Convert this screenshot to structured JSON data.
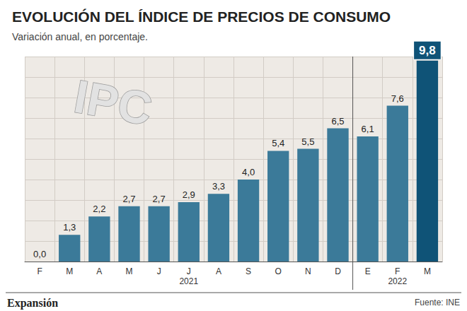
{
  "chart_data": {
    "type": "bar",
    "title": "EVOLUCIÓN DEL ÍNDICE DE PRECIOS DE CONSUMO",
    "subtitle": "Variación anual, en porcentaje.",
    "categories": [
      "F",
      "M",
      "A",
      "M",
      "J",
      "J",
      "A",
      "S",
      "O",
      "N",
      "D",
      "E",
      "F",
      "M"
    ],
    "x_groups": [
      {
        "label": "2021",
        "count": 11
      },
      {
        "label": "2022",
        "count": 3
      }
    ],
    "values": [
      0.0,
      1.3,
      2.2,
      2.7,
      2.7,
      2.9,
      3.3,
      4.0,
      5.4,
      5.5,
      6.5,
      6.1,
      7.6,
      9.8
    ],
    "value_labels": [
      "0,0",
      "1,3",
      "2,2",
      "2,7",
      "2,7",
      "2,9",
      "3,3",
      "4,0",
      "5,4",
      "5,5",
      "6,5",
      "6,1",
      "7,6",
      "9,8"
    ],
    "colors": [
      "#3b7a99",
      "#3b7a99",
      "#3b7a99",
      "#3b7a99",
      "#3b7a99",
      "#3b7a99",
      "#3b7a99",
      "#3b7a99",
      "#3b7a99",
      "#3b7a99",
      "#3b7a99",
      "#3b7a99",
      "#3b7a99",
      "#0f5377"
    ],
    "ylim": [
      0,
      10
    ],
    "yticks": [
      0,
      1,
      2,
      3,
      4,
      5,
      6,
      7,
      8,
      9,
      10
    ],
    "grid": true,
    "tick_labels": "x",
    "data_labels": true,
    "annotations": [
      "IPC"
    ],
    "brand": "Expansión",
    "source": "Fuente: INE"
  }
}
